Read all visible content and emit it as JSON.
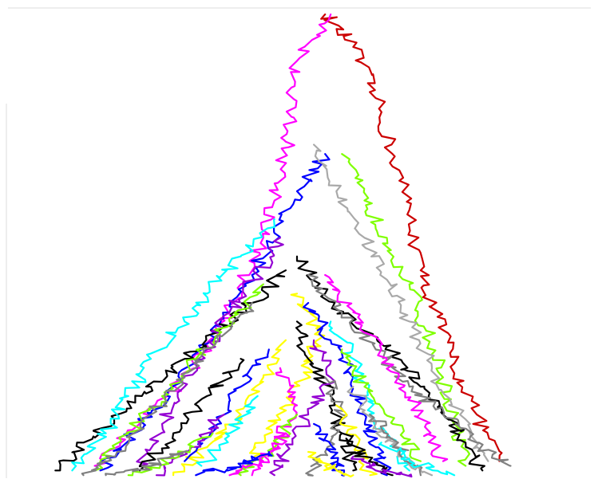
{
  "chart_data": {
    "type": "line",
    "title": "",
    "xlabel": "",
    "ylabel": "",
    "legend": "none",
    "grid": false,
    "axes_visible": false,
    "palette": [
      "#000000",
      "#ff00ff",
      "#0000ff",
      "#7fff00",
      "#808080",
      "#00ffff",
      "#ffff00",
      "#cc0000",
      "#a9a9a9",
      "#9400d3"
    ],
    "series": [
      {
        "color": "#cc0000",
        "points": [
          [
            0.55,
            0.0
          ],
          [
            0.6,
            0.07
          ],
          [
            0.64,
            0.18
          ],
          [
            0.67,
            0.3
          ],
          [
            0.7,
            0.42
          ],
          [
            0.72,
            0.55
          ],
          [
            0.75,
            0.65
          ],
          [
            0.78,
            0.75
          ],
          [
            0.82,
            0.86
          ],
          [
            0.86,
            0.96
          ]
        ]
      },
      {
        "color": "#ff00ff",
        "points": [
          [
            0.56,
            0.0
          ],
          [
            0.5,
            0.1
          ],
          [
            0.49,
            0.22
          ],
          [
            0.48,
            0.3
          ],
          [
            0.46,
            0.4
          ],
          [
            0.44,
            0.48
          ],
          [
            0.4,
            0.58
          ],
          [
            0.36,
            0.68
          ],
          [
            0.3,
            0.78
          ],
          [
            0.22,
            0.88
          ],
          [
            0.14,
            0.97
          ]
        ]
      },
      {
        "color": "#7fff00",
        "points": [
          [
            0.58,
            0.3
          ],
          [
            0.62,
            0.4
          ],
          [
            0.66,
            0.48
          ],
          [
            0.7,
            0.58
          ],
          [
            0.73,
            0.68
          ],
          [
            0.76,
            0.78
          ],
          [
            0.78,
            0.88
          ],
          [
            0.8,
            0.97
          ]
        ]
      },
      {
        "color": "#0000ff",
        "points": [
          [
            0.55,
            0.3
          ],
          [
            0.5,
            0.38
          ],
          [
            0.46,
            0.47
          ],
          [
            0.42,
            0.56
          ],
          [
            0.38,
            0.64
          ],
          [
            0.33,
            0.72
          ],
          [
            0.27,
            0.82
          ],
          [
            0.21,
            0.9
          ],
          [
            0.15,
            0.98
          ]
        ]
      },
      {
        "color": "#a9a9a9",
        "points": [
          [
            0.53,
            0.28
          ],
          [
            0.57,
            0.38
          ],
          [
            0.62,
            0.48
          ],
          [
            0.66,
            0.57
          ],
          [
            0.7,
            0.66
          ],
          [
            0.74,
            0.76
          ],
          [
            0.79,
            0.86
          ],
          [
            0.84,
            0.96
          ]
        ]
      },
      {
        "color": "#000000",
        "points": [
          [
            0.5,
            0.52
          ],
          [
            0.55,
            0.6
          ],
          [
            0.62,
            0.68
          ],
          [
            0.68,
            0.74
          ],
          [
            0.72,
            0.8
          ],
          [
            0.76,
            0.86
          ],
          [
            0.8,
            0.92
          ],
          [
            0.83,
            0.98
          ]
        ]
      },
      {
        "color": "#000000",
        "points": [
          [
            0.48,
            0.55
          ],
          [
            0.42,
            0.62
          ],
          [
            0.36,
            0.68
          ],
          [
            0.3,
            0.74
          ],
          [
            0.24,
            0.8
          ],
          [
            0.18,
            0.86
          ],
          [
            0.12,
            0.92
          ],
          [
            0.07,
            0.98
          ]
        ]
      },
      {
        "color": "#00ffff",
        "points": [
          [
            0.46,
            0.44
          ],
          [
            0.4,
            0.52
          ],
          [
            0.34,
            0.6
          ],
          [
            0.3,
            0.66
          ],
          [
            0.24,
            0.74
          ],
          [
            0.2,
            0.82
          ],
          [
            0.16,
            0.9
          ],
          [
            0.1,
            0.98
          ]
        ]
      },
      {
        "color": "#808080",
        "points": [
          [
            0.52,
            0.56
          ],
          [
            0.58,
            0.64
          ],
          [
            0.64,
            0.72
          ],
          [
            0.7,
            0.8
          ],
          [
            0.76,
            0.86
          ],
          [
            0.82,
            0.92
          ],
          [
            0.88,
            0.97
          ]
        ]
      },
      {
        "color": "#ffff00",
        "points": [
          [
            0.5,
            0.6
          ],
          [
            0.54,
            0.68
          ],
          [
            0.52,
            0.76
          ],
          [
            0.48,
            0.84
          ],
          [
            0.44,
            0.92
          ],
          [
            0.4,
            0.98
          ]
        ]
      },
      {
        "color": "#9400d3",
        "points": [
          [
            0.47,
            0.48
          ],
          [
            0.43,
            0.56
          ],
          [
            0.38,
            0.64
          ],
          [
            0.34,
            0.72
          ],
          [
            0.3,
            0.8
          ],
          [
            0.26,
            0.88
          ],
          [
            0.22,
            0.97
          ]
        ]
      },
      {
        "color": "#7fff00",
        "points": [
          [
            0.44,
            0.58
          ],
          [
            0.38,
            0.66
          ],
          [
            0.32,
            0.74
          ],
          [
            0.26,
            0.82
          ],
          [
            0.2,
            0.9
          ],
          [
            0.14,
            0.98
          ]
        ]
      },
      {
        "color": "#0000ff",
        "points": [
          [
            0.52,
            0.62
          ],
          [
            0.56,
            0.7
          ],
          [
            0.6,
            0.78
          ],
          [
            0.62,
            0.86
          ],
          [
            0.64,
            0.93
          ],
          [
            0.66,
            0.99
          ]
        ]
      },
      {
        "color": "#ff00ff",
        "points": [
          [
            0.55,
            0.56
          ],
          [
            0.6,
            0.64
          ],
          [
            0.65,
            0.72
          ],
          [
            0.69,
            0.8
          ],
          [
            0.73,
            0.88
          ],
          [
            0.76,
            0.96
          ]
        ]
      },
      {
        "color": "#808080",
        "points": [
          [
            0.42,
            0.62
          ],
          [
            0.36,
            0.7
          ],
          [
            0.3,
            0.78
          ],
          [
            0.24,
            0.86
          ],
          [
            0.18,
            0.94
          ],
          [
            0.12,
            0.99
          ]
        ]
      },
      {
        "color": "#000000",
        "points": [
          [
            0.5,
            0.66
          ],
          [
            0.52,
            0.74
          ],
          [
            0.56,
            0.82
          ],
          [
            0.58,
            0.9
          ],
          [
            0.6,
            0.98
          ]
        ]
      },
      {
        "color": "#00ffff",
        "points": [
          [
            0.56,
            0.66
          ],
          [
            0.6,
            0.74
          ],
          [
            0.62,
            0.82
          ],
          [
            0.66,
            0.9
          ],
          [
            0.7,
            0.98
          ]
        ]
      },
      {
        "color": "#ffff00",
        "points": [
          [
            0.48,
            0.7
          ],
          [
            0.44,
            0.78
          ],
          [
            0.4,
            0.86
          ],
          [
            0.34,
            0.93
          ],
          [
            0.28,
            0.99
          ]
        ]
      },
      {
        "color": "#9400d3",
        "points": [
          [
            0.53,
            0.7
          ],
          [
            0.56,
            0.78
          ],
          [
            0.52,
            0.86
          ],
          [
            0.48,
            0.94
          ],
          [
            0.46,
            0.99
          ]
        ]
      },
      {
        "color": "#7fff00",
        "points": [
          [
            0.58,
            0.72
          ],
          [
            0.62,
            0.8
          ],
          [
            0.67,
            0.88
          ],
          [
            0.72,
            0.96
          ]
        ]
      },
      {
        "color": "#0000ff",
        "points": [
          [
            0.45,
            0.72
          ],
          [
            0.4,
            0.8
          ],
          [
            0.36,
            0.88
          ],
          [
            0.3,
            0.96
          ]
        ]
      },
      {
        "color": "#ff00ff",
        "points": [
          [
            0.47,
            0.76
          ],
          [
            0.5,
            0.84
          ],
          [
            0.46,
            0.92
          ],
          [
            0.42,
            0.99
          ]
        ]
      },
      {
        "color": "#808080",
        "points": [
          [
            0.55,
            0.78
          ],
          [
            0.58,
            0.86
          ],
          [
            0.55,
            0.94
          ],
          [
            0.52,
            0.99
          ]
        ]
      },
      {
        "color": "#000000",
        "points": [
          [
            0.4,
            0.74
          ],
          [
            0.34,
            0.82
          ],
          [
            0.28,
            0.9
          ],
          [
            0.22,
            0.98
          ]
        ]
      },
      {
        "color": "#a9a9a9",
        "points": [
          [
            0.6,
            0.8
          ],
          [
            0.64,
            0.88
          ],
          [
            0.68,
            0.94
          ],
          [
            0.74,
            0.99
          ]
        ]
      },
      {
        "color": "#00ffff",
        "points": [
          [
            0.43,
            0.82
          ],
          [
            0.38,
            0.9
          ],
          [
            0.33,
            0.97
          ]
        ]
      },
      {
        "color": "#ffff00",
        "points": [
          [
            0.57,
            0.84
          ],
          [
            0.61,
            0.92
          ],
          [
            0.63,
            0.99
          ]
        ]
      },
      {
        "color": "#7fff00",
        "points": [
          [
            0.5,
            0.86
          ],
          [
            0.46,
            0.93
          ],
          [
            0.4,
            0.99
          ]
        ]
      },
      {
        "color": "#0000ff",
        "points": [
          [
            0.53,
            0.88
          ],
          [
            0.56,
            0.94
          ],
          [
            0.58,
            0.99
          ]
        ]
      },
      {
        "color": "#9400d3",
        "points": [
          [
            0.37,
            0.86
          ],
          [
            0.31,
            0.93
          ],
          [
            0.25,
            0.99
          ]
        ]
      },
      {
        "color": "#808080",
        "points": [
          [
            0.63,
            0.86
          ],
          [
            0.68,
            0.92
          ],
          [
            0.72,
            0.99
          ]
        ]
      },
      {
        "color": "#ff00ff",
        "points": [
          [
            0.48,
            0.9
          ],
          [
            0.44,
            0.96
          ],
          [
            0.38,
            0.99
          ]
        ]
      },
      {
        "color": "#000000",
        "points": [
          [
            0.58,
            0.9
          ],
          [
            0.62,
            0.95
          ],
          [
            0.67,
            0.99
          ]
        ]
      },
      {
        "color": "#7fff00",
        "points": [
          [
            0.35,
            0.9
          ],
          [
            0.29,
            0.95
          ],
          [
            0.2,
            0.99
          ]
        ]
      },
      {
        "color": "#00ffff",
        "points": [
          [
            0.65,
            0.92
          ],
          [
            0.7,
            0.96
          ],
          [
            0.78,
            0.99
          ]
        ]
      },
      {
        "color": "#0000ff",
        "points": [
          [
            0.45,
            0.94
          ],
          [
            0.4,
            0.97
          ],
          [
            0.32,
            0.99
          ]
        ]
      },
      {
        "color": "#ffff00",
        "points": [
          [
            0.52,
            0.94
          ],
          [
            0.55,
            0.97
          ],
          [
            0.6,
            0.99
          ]
        ]
      },
      {
        "color": "#808080",
        "points": [
          [
            0.3,
            0.94
          ],
          [
            0.24,
            0.97
          ],
          [
            0.16,
            0.99
          ]
        ]
      },
      {
        "color": "#9400d3",
        "points": [
          [
            0.6,
            0.95
          ],
          [
            0.64,
            0.98
          ],
          [
            0.7,
            0.99
          ]
        ]
      }
    ]
  }
}
